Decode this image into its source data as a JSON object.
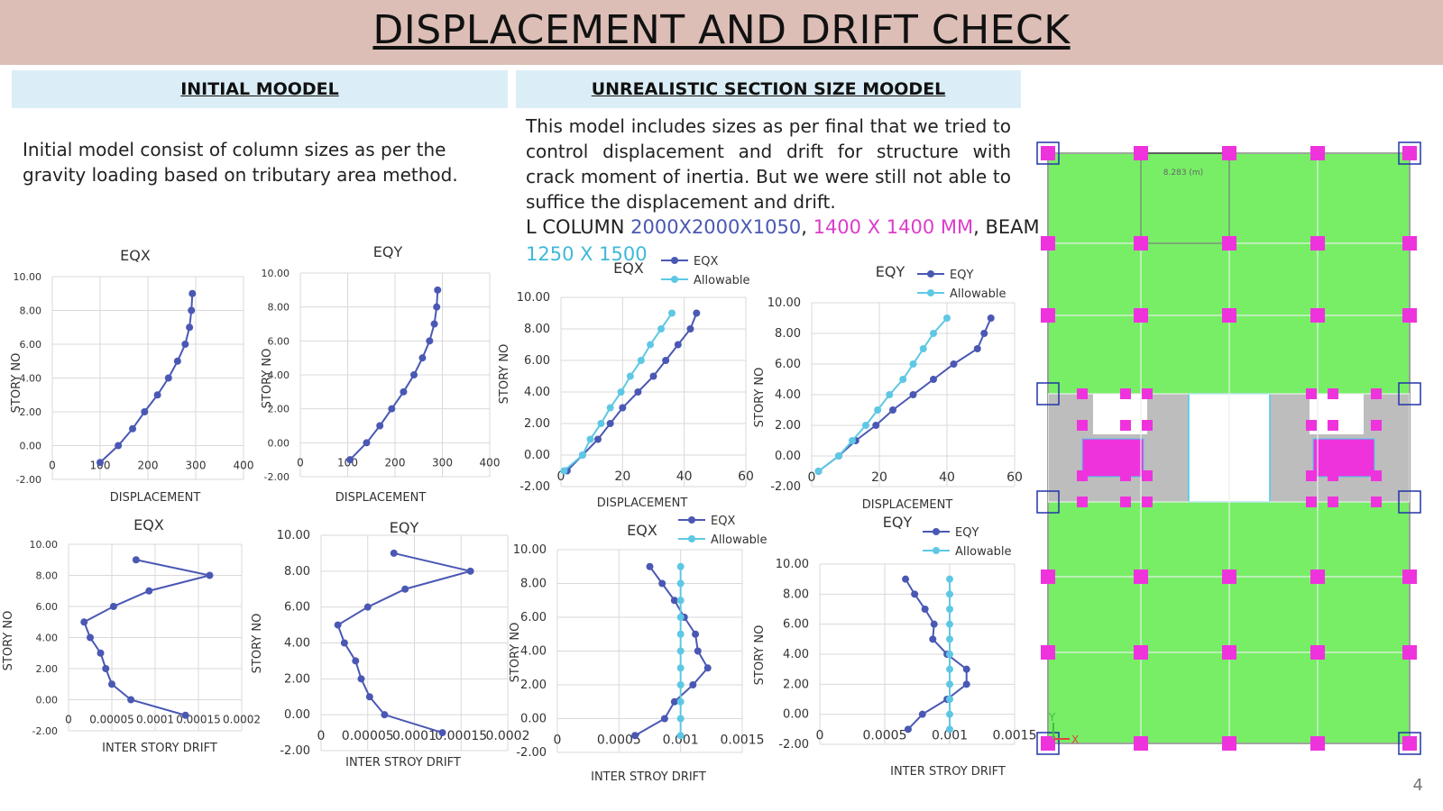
{
  "title": "DISPLACEMENT AND DRIFT CHECK",
  "page_number": "4",
  "colors": {
    "series_main": "#4a58b4",
    "series_allowable": "#5ec8e4",
    "slab": "#77ee66",
    "column": "#ee33dd",
    "header_band": "#dcbeb6",
    "section_band": "#dbeef7"
  },
  "left": {
    "heading": "INITIAL MOODEL",
    "text": "Initial model consist of column sizes as per the gravity loading based on tributary area method."
  },
  "right": {
    "heading": "UNREALISTIC SECTION SIZE MOODEL",
    "text": "This model includes sizes as per final that we tried to control displacement and drift for structure with crack moment of inertia. But we were still not able to suffice the displacement and drift.",
    "spec_prefix": "L COLUMN ",
    "spec_a": "2000X2000X1050",
    "spec_sep1": ", ",
    "spec_b": "1400 X 1400 MM",
    "spec_sep2": ", BEAM",
    "spec_c": "1250 X 1500"
  },
  "plan": {
    "dimension_label": "8.283 (m)",
    "axis_x": "X",
    "axis_y": "Y"
  },
  "chart_data": [
    {
      "id": "c1",
      "type": "line",
      "title": "EQX",
      "xlabel": "DISPLACEMENT",
      "ylabel": "STORY NO",
      "xlim": [
        0,
        400
      ],
      "ylim": [
        -2,
        10
      ],
      "xticks": [
        "0",
        "100",
        "200",
        "300",
        "400"
      ],
      "yticks": [
        "-2.00",
        "0.00",
        "2.00",
        "4.00",
        "6.00",
        "8.00",
        "10.00"
      ],
      "series": [
        {
          "values": [
            [
              100,
              -1
            ],
            [
              138,
              0
            ],
            [
              168,
              1
            ],
            [
              193,
              2
            ],
            [
              220,
              3
            ],
            [
              243,
              4
            ],
            [
              262,
              5
            ],
            [
              278,
              6
            ],
            [
              287,
              7
            ],
            [
              291,
              8
            ],
            [
              293,
              9
            ]
          ]
        }
      ]
    },
    {
      "id": "c2",
      "type": "line",
      "title": "EQY",
      "xlabel": "DISPLACEMENT",
      "ylabel": "STORY NO",
      "xlim": [
        0,
        400
      ],
      "ylim": [
        -2,
        10
      ],
      "xticks": [
        "0",
        "100",
        "200",
        "300",
        "400"
      ],
      "yticks": [
        "-2.00",
        "0.00",
        "2.00",
        "4.00",
        "6.00",
        "8.00",
        "10.00"
      ],
      "series": [
        {
          "values": [
            [
              105,
              -1
            ],
            [
              140,
              0
            ],
            [
              168,
              1
            ],
            [
              193,
              2
            ],
            [
              218,
              3
            ],
            [
              240,
              4
            ],
            [
              258,
              5
            ],
            [
              273,
              6
            ],
            [
              283,
              7
            ],
            [
              288,
              8
            ],
            [
              290,
              9
            ]
          ]
        }
      ]
    },
    {
      "id": "c3",
      "type": "line",
      "title": "EQX",
      "xlabel": "DISPLACEMENT",
      "ylabel": "STORY NO",
      "xlim": [
        0,
        60
      ],
      "ylim": [
        -2,
        10
      ],
      "xticks": [
        "0",
        "20",
        "40",
        "60"
      ],
      "yticks": [
        "-2.00",
        "0.00",
        "2.00",
        "4.00",
        "6.00",
        "8.00",
        "10.00"
      ],
      "legend": [
        "EQX",
        "Allowable"
      ],
      "series": [
        {
          "name": "EQX",
          "values": [
            [
              2,
              -1
            ],
            [
              7,
              0
            ],
            [
              12,
              1
            ],
            [
              16,
              2
            ],
            [
              20,
              3
            ],
            [
              25,
              4
            ],
            [
              30,
              5
            ],
            [
              34,
              6
            ],
            [
              38,
              7
            ],
            [
              42,
              8
            ],
            [
              44,
              9
            ]
          ]
        },
        {
          "name": "Allowable",
          "values": [
            [
              1,
              -1
            ],
            [
              7,
              0
            ],
            [
              9.5,
              1
            ],
            [
              13,
              2
            ],
            [
              16,
              3
            ],
            [
              19.5,
              4
            ],
            [
              22.5,
              5
            ],
            [
              26,
              6
            ],
            [
              29,
              7
            ],
            [
              32.5,
              8
            ],
            [
              36,
              9
            ]
          ]
        }
      ]
    },
    {
      "id": "c4",
      "type": "line",
      "title": "EQY",
      "xlabel": "DISPLACEMENT",
      "ylabel": "STORY NO",
      "xlim": [
        0,
        60
      ],
      "ylim": [
        -2,
        10
      ],
      "xticks": [
        "0",
        "20",
        "40",
        "60"
      ],
      "yticks": [
        "-2.00",
        "0.00",
        "2.00",
        "4.00",
        "6.00",
        "8.00",
        "10.00"
      ],
      "legend": [
        "EQY",
        "Allowable"
      ],
      "series": [
        {
          "name": "EQY",
          "values": [
            [
              2,
              -1
            ],
            [
              8,
              0
            ],
            [
              13,
              1
            ],
            [
              19,
              2
            ],
            [
              24,
              3
            ],
            [
              30,
              4
            ],
            [
              36,
              5
            ],
            [
              42,
              6
            ],
            [
              49,
              7
            ],
            [
              51,
              8
            ],
            [
              53,
              9
            ]
          ]
        },
        {
          "name": "Allowable",
          "values": [
            [
              2,
              -1
            ],
            [
              8,
              0
            ],
            [
              12,
              1
            ],
            [
              16,
              2
            ],
            [
              19.5,
              3
            ],
            [
              23,
              4
            ],
            [
              27,
              5
            ],
            [
              30,
              6
            ],
            [
              33,
              7
            ],
            [
              36,
              8
            ],
            [
              40,
              9
            ]
          ]
        }
      ]
    },
    {
      "id": "c5",
      "type": "line",
      "title": "EQX",
      "xlabel": "INTER STORY DRIFT",
      "ylabel": "STORY NO",
      "xlim": [
        0,
        0.0002
      ],
      "ylim": [
        -2,
        10
      ],
      "xticks": [
        "0",
        "0.00005",
        "0.0001",
        "0.00015",
        "0.0002"
      ],
      "yticks": [
        "-2.00",
        "0.00",
        "2.00",
        "4.00",
        "6.00",
        "8.00",
        "10.00"
      ],
      "series": [
        {
          "values": [
            [
              0.000135,
              -1
            ],
            [
              7.2e-05,
              0
            ],
            [
              5e-05,
              1
            ],
            [
              4.3e-05,
              2
            ],
            [
              3.7e-05,
              3
            ],
            [
              2.5e-05,
              4
            ],
            [
              1.8e-05,
              5
            ],
            [
              5.2e-05,
              6
            ],
            [
              9.3e-05,
              7
            ],
            [
              0.000163,
              8
            ],
            [
              7.8e-05,
              9
            ]
          ]
        }
      ]
    },
    {
      "id": "c6",
      "type": "line",
      "title": "EQY",
      "xlabel": "INTER STROY DRIFT",
      "ylabel": "STORY NO",
      "xlim": [
        0,
        0.0002
      ],
      "ylim": [
        -2,
        10
      ],
      "xticks": [
        "0",
        "0.00005",
        "0.0001",
        "0.00015",
        "0.0002"
      ],
      "yticks": [
        "-2.00",
        "0.00",
        "2.00",
        "4.00",
        "6.00",
        "8.00",
        "10.00"
      ],
      "series": [
        {
          "values": [
            [
              0.00013,
              -1
            ],
            [
              6.8e-05,
              0
            ],
            [
              5.2e-05,
              1
            ],
            [
              4.3e-05,
              2
            ],
            [
              3.7e-05,
              3
            ],
            [
              2.5e-05,
              4
            ],
            [
              1.8e-05,
              5
            ],
            [
              5e-05,
              6
            ],
            [
              9e-05,
              7
            ],
            [
              0.00016,
              8
            ],
            [
              7.8e-05,
              9
            ]
          ]
        }
      ]
    },
    {
      "id": "c7",
      "type": "line",
      "title": "EQX",
      "xlabel": "INTER STROY DRIFT",
      "ylabel": "STORY NO",
      "xlim": [
        0,
        0.0015
      ],
      "ylim": [
        -2,
        10
      ],
      "xticks": [
        "0",
        "0.0005",
        "0.001",
        "0.0015"
      ],
      "yticks": [
        "-2.00",
        "0.00",
        "2.00",
        "4.00",
        "6.00",
        "8.00",
        "10.00"
      ],
      "legend": [
        "EQX",
        "Allowable"
      ],
      "series": [
        {
          "name": "EQX",
          "values": [
            [
              0.00063,
              -1
            ],
            [
              0.00087,
              0
            ],
            [
              0.00095,
              1
            ],
            [
              0.0011,
              2
            ],
            [
              0.00122,
              3
            ],
            [
              0.00114,
              4
            ],
            [
              0.00112,
              5
            ],
            [
              0.00103,
              6
            ],
            [
              0.00095,
              7
            ],
            [
              0.00085,
              8
            ],
            [
              0.00075,
              9
            ]
          ]
        },
        {
          "name": "Allowable",
          "values": [
            [
              0.001,
              -1
            ],
            [
              0.001,
              0
            ],
            [
              0.001,
              1
            ],
            [
              0.001,
              2
            ],
            [
              0.001,
              3
            ],
            [
              0.001,
              4
            ],
            [
              0.001,
              5
            ],
            [
              0.001,
              6
            ],
            [
              0.001,
              7
            ],
            [
              0.001,
              8
            ],
            [
              0.001,
              9
            ]
          ]
        }
      ]
    },
    {
      "id": "c8",
      "type": "line",
      "title": "EQY",
      "xlabel": "INTER STROY DRIFT",
      "ylabel": "STORY NO",
      "xlim": [
        0,
        0.0015
      ],
      "ylim": [
        -2,
        10
      ],
      "xticks": [
        "0",
        "0.0005",
        "0.001",
        "0.0015"
      ],
      "yticks": [
        "-2.00",
        "0.00",
        "2.00",
        "4.00",
        "6.00",
        "8.00",
        "10.00"
      ],
      "legend": [
        "EQY",
        "Allowable"
      ],
      "series": [
        {
          "name": "EQY",
          "values": [
            [
              0.00068,
              -1
            ],
            [
              0.00079,
              0
            ],
            [
              0.00098,
              1
            ],
            [
              0.00113,
              2
            ],
            [
              0.00113,
              3
            ],
            [
              0.00098,
              4
            ],
            [
              0.00087,
              5
            ],
            [
              0.00088,
              6
            ],
            [
              0.00081,
              7
            ],
            [
              0.00073,
              8
            ],
            [
              0.00066,
              9
            ]
          ]
        },
        {
          "name": "Allowable",
          "values": [
            [
              0.001,
              -1
            ],
            [
              0.001,
              0
            ],
            [
              0.001,
              1
            ],
            [
              0.001,
              2
            ],
            [
              0.001,
              3
            ],
            [
              0.001,
              4
            ],
            [
              0.001,
              5
            ],
            [
              0.001,
              6
            ],
            [
              0.001,
              7
            ],
            [
              0.001,
              8
            ],
            [
              0.001,
              9
            ]
          ]
        }
      ]
    }
  ]
}
